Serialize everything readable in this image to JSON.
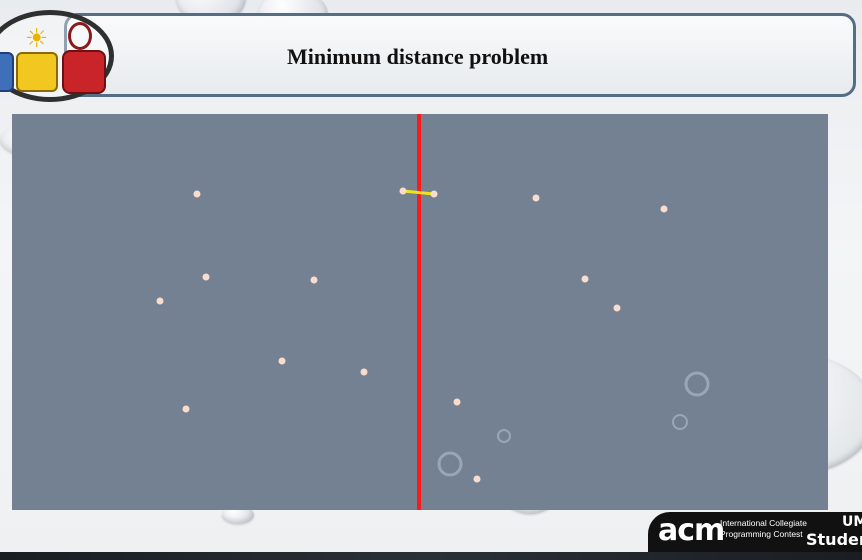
{
  "slide": {
    "title": "Minimum distance problem"
  },
  "footer": {
    "logo_text": "acm",
    "tagline_1": "International Collegiate",
    "tagline_2": "Programming Contest",
    "side_1": "UM",
    "side_2": "Student"
  },
  "colors": {
    "plot_background": "#748193",
    "points": "#f8dccd",
    "divider": "#ff1a1a",
    "closest_pair": "#f0e21d",
    "title_border": "#566d86"
  },
  "icons": [
    "blue-puzzle-icon",
    "lightbulb-icon",
    "red-knot-icon"
  ],
  "chart_data": {
    "type": "scatter",
    "xlim": [
      0,
      816
    ],
    "ylim": [
      0,
      396
    ],
    "points": [
      {
        "x": 185,
        "y": 80
      },
      {
        "x": 391,
        "y": 77
      },
      {
        "x": 422,
        "y": 80
      },
      {
        "x": 524,
        "y": 84
      },
      {
        "x": 652,
        "y": 95
      },
      {
        "x": 194,
        "y": 163
      },
      {
        "x": 302,
        "y": 166
      },
      {
        "x": 148,
        "y": 187
      },
      {
        "x": 573,
        "y": 165
      },
      {
        "x": 605,
        "y": 194
      },
      {
        "x": 270,
        "y": 247
      },
      {
        "x": 352,
        "y": 258
      },
      {
        "x": 174,
        "y": 295
      },
      {
        "x": 445,
        "y": 288
      },
      {
        "x": 465,
        "y": 365
      }
    ],
    "divider_x": 407,
    "closest_pair": [
      [
        391,
        77
      ],
      [
        422,
        80
      ]
    ]
  }
}
